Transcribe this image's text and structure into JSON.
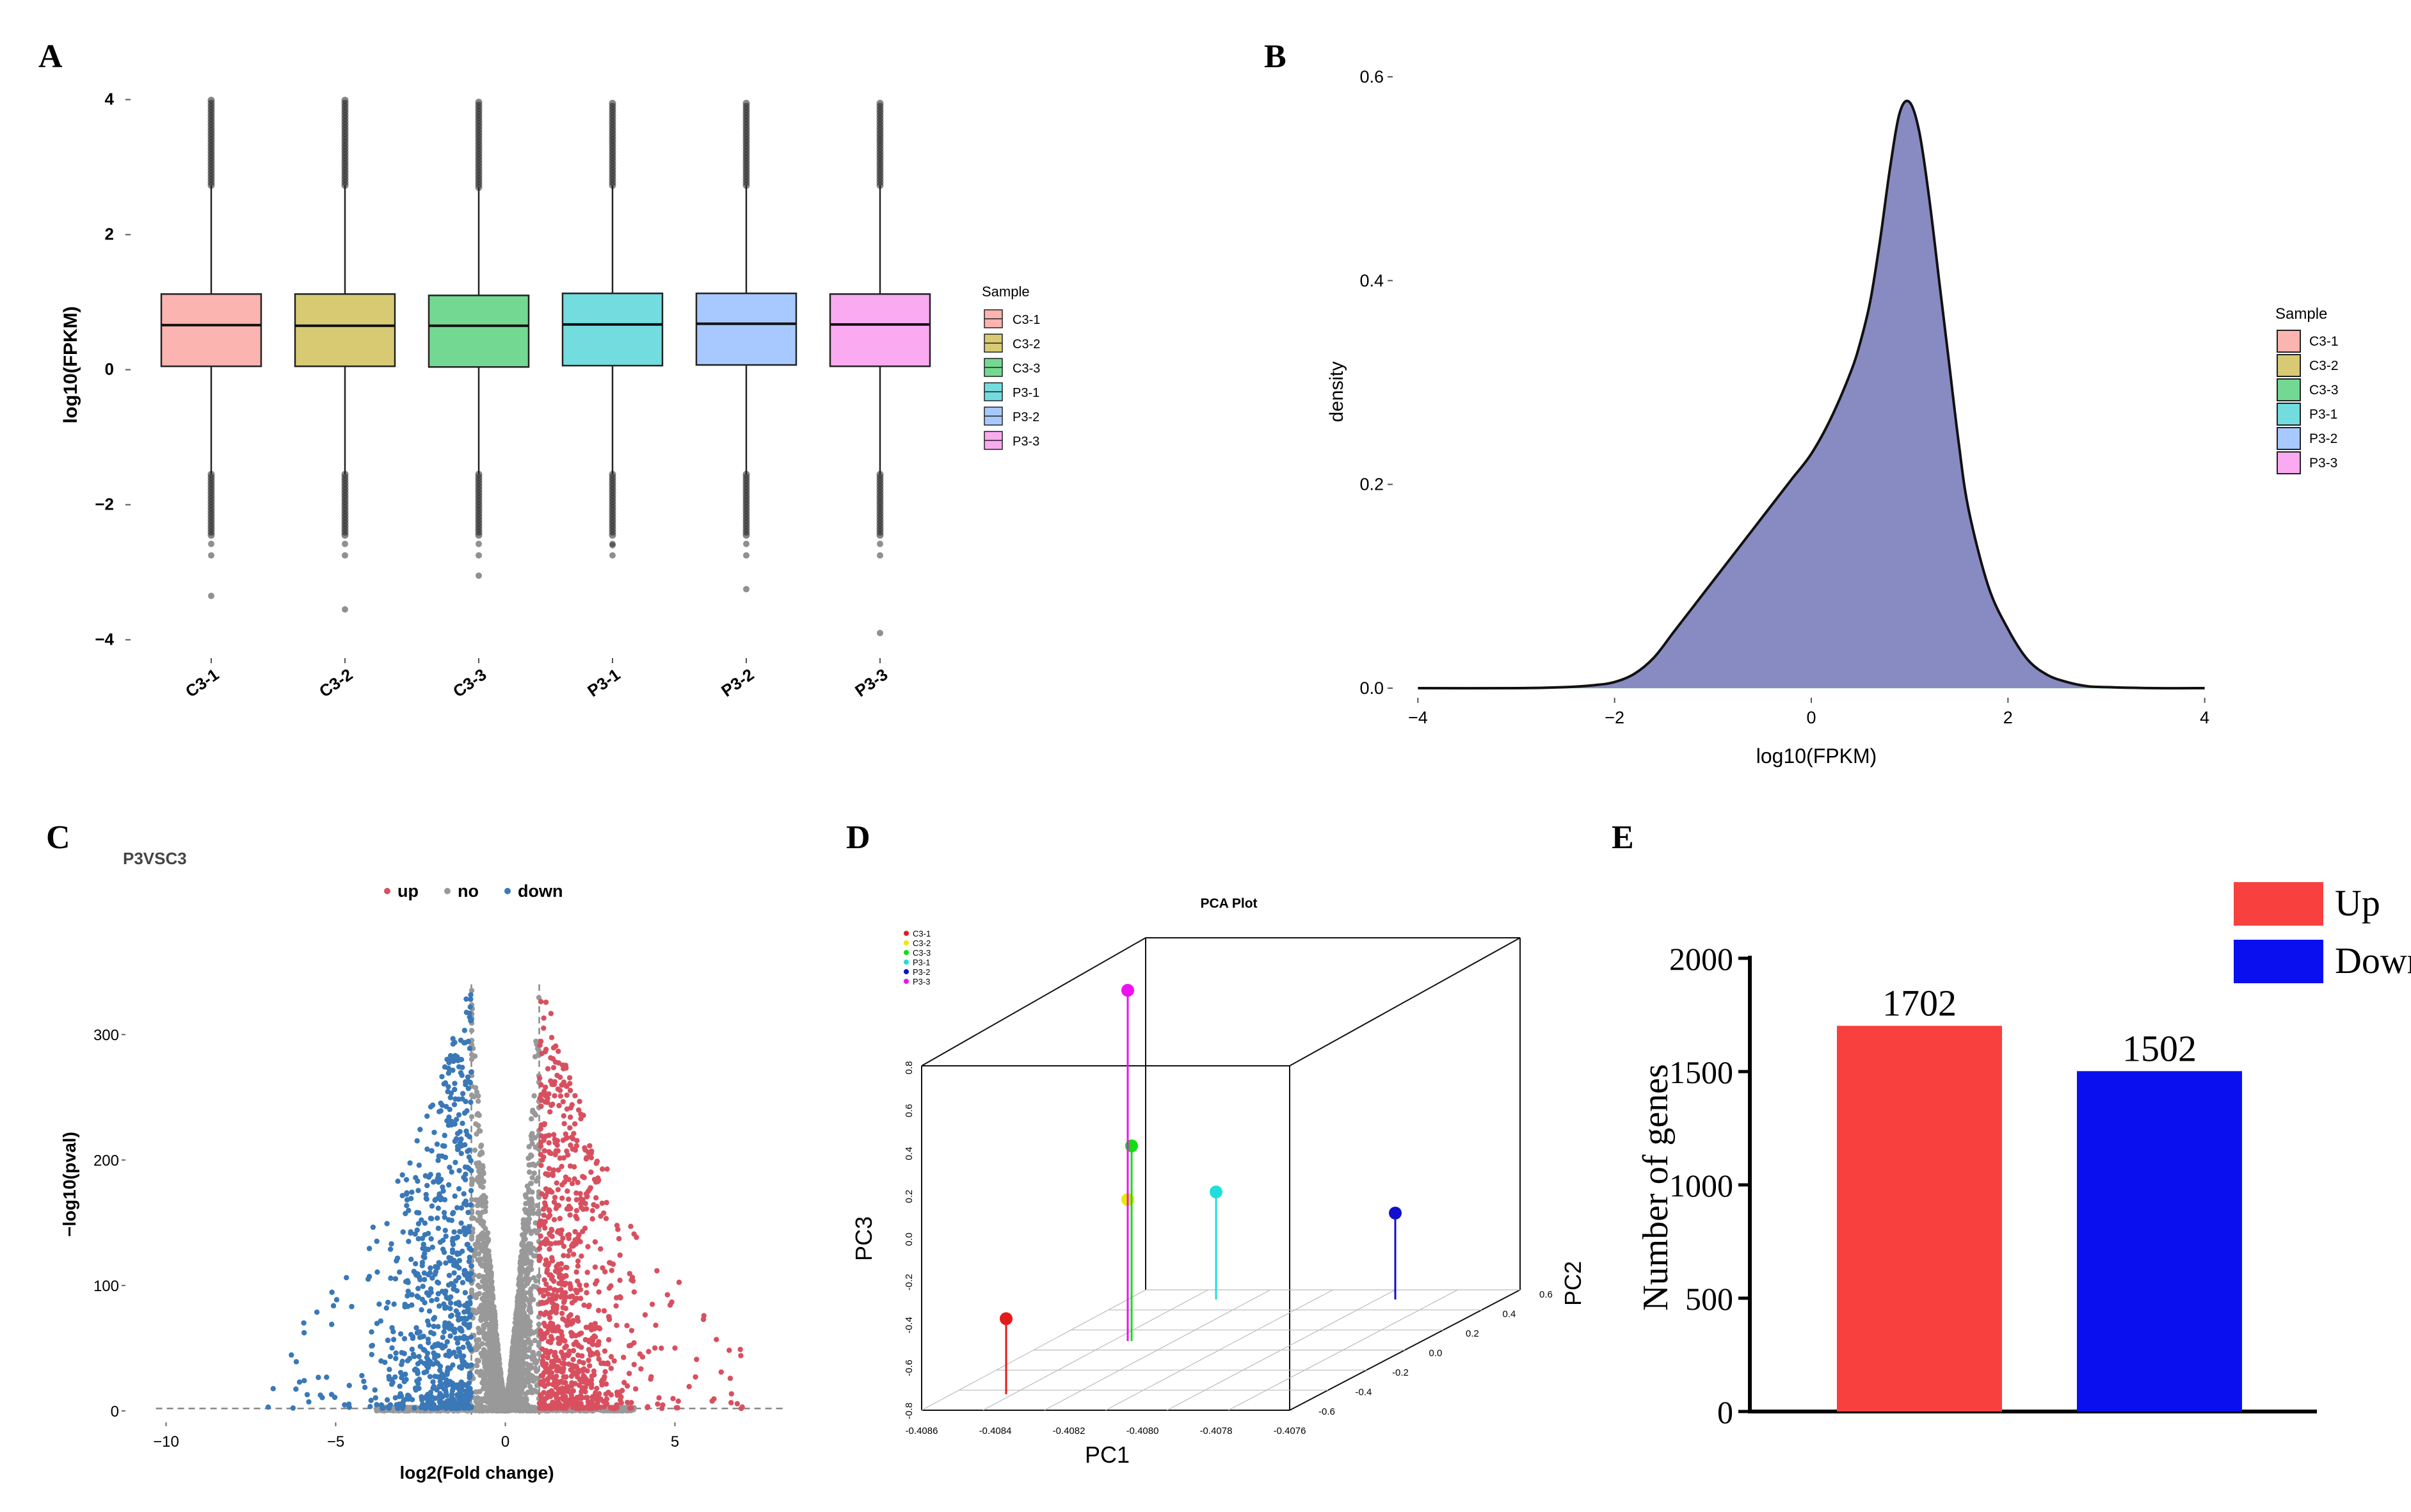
{
  "colors": {
    "c3_1": "#f8766d",
    "c3_2": "#b79f00",
    "c3_3": "#00ba38",
    "p3_1": "#00bfc4",
    "p3_2": "#619cff",
    "p3_3": "#f564e3",
    "up": "#d8505f",
    "no": "#999999",
    "down": "#3a78b7",
    "bar_up": "#f8403f",
    "bar_down": "#0a0ff0",
    "density_fill": "#9b85d4"
  },
  "panels": {
    "A": {
      "letter": "A",
      "ylabel": "log10(FPKM)",
      "legend_title": "Sample",
      "chart_data": {
        "type": "boxplot",
        "categories": [
          "C3-1",
          "C3-2",
          "C3-3",
          "P3-1",
          "P3-2",
          "P3-3"
        ],
        "series": [
          {
            "name": "C3-1",
            "q1": 0.05,
            "median": 0.66,
            "q3": 1.12,
            "whisker_low": -1.55,
            "whisker_high": 2.73,
            "max": 4.0,
            "min": -3.35
          },
          {
            "name": "C3-2",
            "q1": 0.05,
            "median": 0.65,
            "q3": 1.12,
            "whisker_low": -1.55,
            "whisker_high": 2.73,
            "max": 4.0,
            "min": -3.55
          },
          {
            "name": "C3-3",
            "q1": 0.04,
            "median": 0.65,
            "q3": 1.1,
            "whisker_low": -1.55,
            "whisker_high": 2.7,
            "max": 4.0,
            "min": -3.05
          },
          {
            "name": "P3-1",
            "q1": 0.06,
            "median": 0.67,
            "q3": 1.13,
            "whisker_low": -1.55,
            "whisker_high": 2.73,
            "max": 3.95,
            "min": -2.6
          },
          {
            "name": "P3-2",
            "q1": 0.07,
            "median": 0.68,
            "q3": 1.13,
            "whisker_low": -1.55,
            "whisker_high": 2.73,
            "max": 3.95,
            "min": -3.25
          },
          {
            "name": "P3-3",
            "q1": 0.05,
            "median": 0.67,
            "q3": 1.12,
            "whisker_low": -1.55,
            "whisker_high": 2.73,
            "max": 3.95,
            "min": -3.9
          }
        ],
        "yticks": [
          4,
          2,
          0,
          -2,
          -4
        ],
        "ytick_labels": [
          "4",
          "2",
          "0",
          "−2",
          "−4"
        ],
        "ylim": [
          -4.1,
          4.1
        ]
      }
    },
    "B": {
      "letter": "B",
      "xlabel": "log10(FPKM)",
      "ylabel": "density",
      "legend_title": "Sample",
      "legend": [
        "C3-1",
        "C3-2",
        "C3-3",
        "P3-1",
        "P3-2",
        "P3-3"
      ],
      "chart_data": {
        "type": "area",
        "x": [
          -4,
          -3,
          -2.5,
          -2.2,
          -2,
          -1.8,
          -1.6,
          -1.4,
          -1.2,
          -1,
          -0.8,
          -0.6,
          -0.4,
          -0.2,
          0,
          0.2,
          0.4,
          0.5,
          0.6,
          0.7,
          0.8,
          0.9,
          1,
          1.1,
          1.2,
          1.3,
          1.4,
          1.5,
          1.6,
          1.8,
          2,
          2.2,
          2.4,
          2.6,
          2.8,
          3,
          3.5,
          4
        ],
        "y": [
          0,
          0,
          0.001,
          0.003,
          0.006,
          0.014,
          0.03,
          0.055,
          0.08,
          0.105,
          0.13,
          0.155,
          0.18,
          0.205,
          0.23,
          0.265,
          0.31,
          0.34,
          0.38,
          0.44,
          0.51,
          0.565,
          0.575,
          0.545,
          0.48,
          0.4,
          0.32,
          0.24,
          0.175,
          0.1,
          0.058,
          0.028,
          0.013,
          0.006,
          0.002,
          0.001,
          0,
          0
        ],
        "xticks": [
          -4,
          -2,
          0,
          2,
          4
        ],
        "xtick_labels": [
          "−4",
          "−2",
          "0",
          "2",
          "4"
        ],
        "yticks": [
          0.0,
          0.2,
          0.4,
          0.6
        ],
        "ytick_labels": [
          "0.0",
          "0.2",
          "0.4",
          "0.6"
        ],
        "xlim": [
          -4.1,
          4.1
        ],
        "ylim": [
          0,
          0.6
        ]
      }
    },
    "C": {
      "letter": "C",
      "title": "P3VSC3",
      "xlabel": "log2(Fold change)",
      "ylabel": "−log10(pval)",
      "legend": [
        {
          "label": "up",
          "color_key": "up"
        },
        {
          "label": "no",
          "color_key": "no"
        },
        {
          "label": "down",
          "color_key": "down"
        }
      ],
      "chart_data": {
        "type": "scatter",
        "fc_threshold": 1,
        "xticks": [
          -10,
          -5,
          0,
          5
        ],
        "xtick_labels": [
          "−10",
          "−5",
          "0",
          "5"
        ],
        "yticks": [
          0,
          100,
          200,
          300
        ],
        "ytick_labels": [
          "0",
          "100",
          "200",
          "300"
        ],
        "xlim": [
          -10.5,
          8.5
        ],
        "ylim": [
          -3,
          345
        ],
        "n_up": 1702,
        "n_down": 1502
      }
    },
    "D": {
      "letter": "D",
      "title": "PCA Plot",
      "xlabel": "PC1",
      "ylabel": "PC3",
      "zlabel": "PC2",
      "legend": [
        "C3-1",
        "C3-2",
        "C3-3",
        "P3-1",
        "P3-2",
        "P3-3"
      ],
      "chart_data": {
        "type": "scatter3d",
        "points": [
          {
            "name": "C3-1",
            "pc1": -0.40838,
            "pc2": -0.55,
            "pc3": -0.35
          },
          {
            "name": "C3-2",
            "pc1": -0.40807,
            "pc2": 0.2,
            "pc3": -0.2
          },
          {
            "name": "C3-3",
            "pc1": -0.40806,
            "pc2": 0.2,
            "pc3": 0.15
          },
          {
            "name": "P3-1",
            "pc1": -0.4079,
            "pc2": 0.45,
            "pc3": 0.1
          },
          {
            "name": "P3-2",
            "pc1": -0.40766,
            "pc2": 0.4,
            "pc3": 0.05
          },
          {
            "name": "P3-3",
            "pc1": -0.4081,
            "pc2": 0.2,
            "pc3": 0.65
          }
        ],
        "pc1_ticks": [
          "-0.4086",
          "-0.4084",
          "-0.4082",
          "-0.4080",
          "-0.4078",
          "-0.4076"
        ],
        "pc2_ticks": [
          "-0.6",
          "-0.4",
          "-0.2",
          "0.0",
          "0.2",
          "0.4",
          "0.6"
        ],
        "pc3_ticks": [
          "0.8",
          "0.6",
          "0.4",
          "0.2",
          "0.0",
          "-0.2",
          "-0.4",
          "-0.6",
          "-0.8"
        ],
        "pc1_range": [
          -0.4086,
          -0.4076
        ],
        "pc2_range": [
          -0.6,
          0.6
        ],
        "pc3_range": [
          -0.8,
          0.8
        ]
      }
    },
    "E": {
      "letter": "E",
      "ylabel": "Number of genes",
      "legend": [
        {
          "label": "Up",
          "color_key": "bar_up"
        },
        {
          "label": "Down",
          "color_key": "bar_down"
        }
      ],
      "chart_data": {
        "type": "bar",
        "categories": [
          "Up",
          "Down"
        ],
        "values": [
          1702,
          1502
        ],
        "data_labels": [
          "1702",
          "1502"
        ],
        "yticks": [
          0,
          500,
          1000,
          1500,
          2000
        ],
        "ytick_labels": [
          "0",
          "500",
          "1000",
          "1500",
          "2000"
        ],
        "ylim": [
          0,
          2000
        ]
      }
    }
  }
}
